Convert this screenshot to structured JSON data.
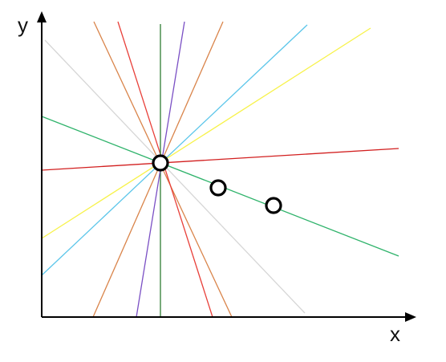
{
  "axes": {
    "x_label": "x",
    "y_label": "y"
  },
  "colors": {
    "axis": "#000000",
    "point_stroke": "#000000",
    "point_fill": "#ffffff"
  },
  "lines": [
    {
      "name": "line-gray",
      "color": "#d6d6d6"
    },
    {
      "name": "line-orange-left",
      "color": "#d9844a"
    },
    {
      "name": "line-red-steep",
      "color": "#e8403a"
    },
    {
      "name": "line-green-vertical",
      "color": "#2e7d32"
    },
    {
      "name": "line-purple",
      "color": "#7a4fc4"
    },
    {
      "name": "line-orange-right",
      "color": "#d9844a"
    },
    {
      "name": "line-blue",
      "color": "#5cc6ea"
    },
    {
      "name": "line-yellow",
      "color": "#f7f24a"
    },
    {
      "name": "line-green-decline",
      "color": "#2fb36b"
    },
    {
      "name": "line-red-shallow",
      "color": "#d21f1f"
    }
  ],
  "points": [
    {
      "name": "pivot-point"
    },
    {
      "name": "data-point-2"
    },
    {
      "name": "data-point-3"
    }
  ]
}
